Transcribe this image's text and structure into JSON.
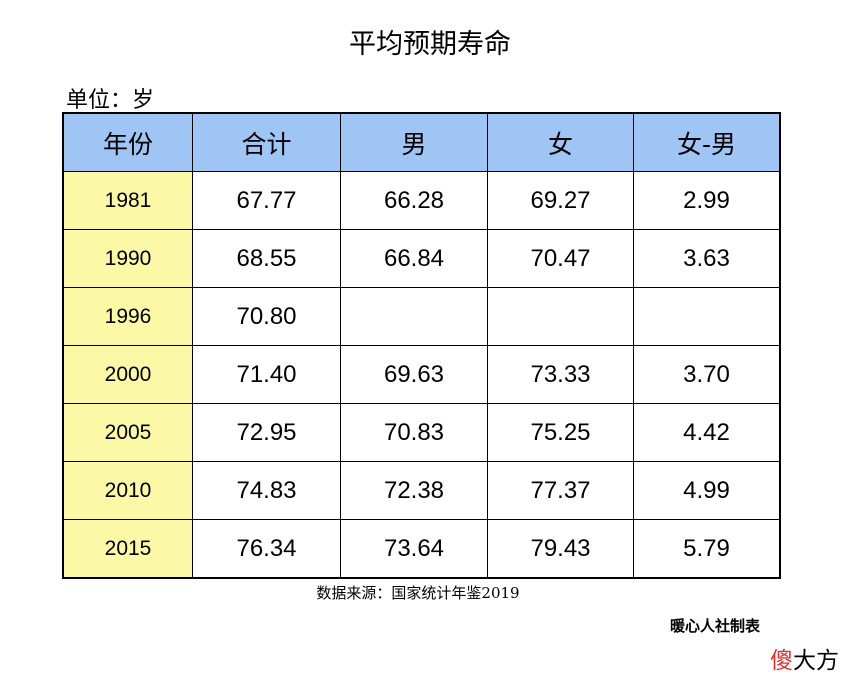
{
  "header": {
    "title": "平均预期寿命",
    "unit": "单位：岁"
  },
  "table": {
    "columns": [
      "年份",
      "合计",
      "男",
      "女",
      "女-男"
    ],
    "rows": [
      [
        "1981",
        "67.77",
        "66.28",
        "69.27",
        "2.99"
      ],
      [
        "1990",
        "68.55",
        "66.84",
        "70.47",
        "3.63"
      ],
      [
        "1996",
        "70.80",
        null,
        null,
        null
      ],
      [
        "2000",
        "71.40",
        "69.63",
        "73.33",
        "3.70"
      ],
      [
        "2005",
        "72.95",
        "70.83",
        "75.25",
        "4.42"
      ],
      [
        "2010",
        "74.83",
        "72.38",
        "77.37",
        "4.99"
      ],
      [
        "2015",
        "76.34",
        "73.64",
        "79.43",
        "5.79"
      ]
    ]
  },
  "footer": {
    "source": "数据来源：国家统计年鉴2019",
    "credit": "暖心人社制表",
    "watermark": [
      "傻",
      "大方"
    ]
  }
}
